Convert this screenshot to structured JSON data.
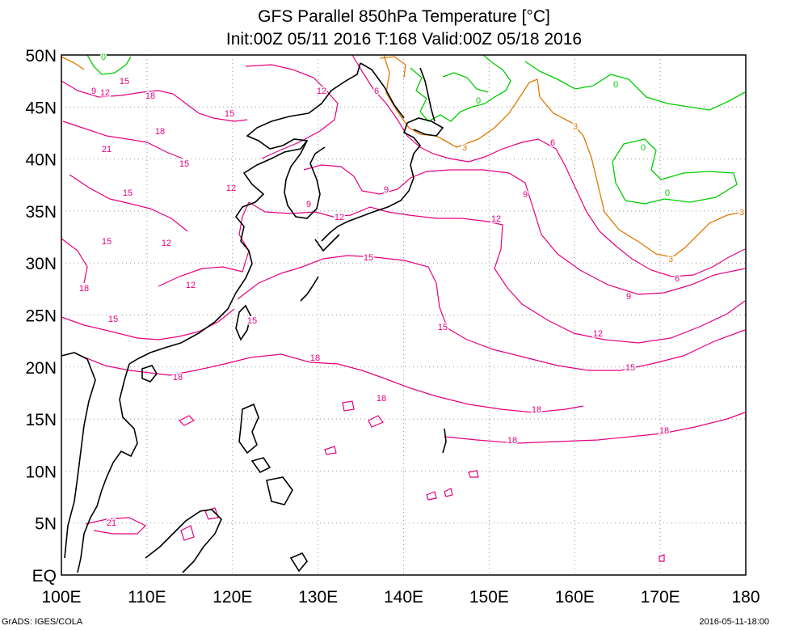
{
  "title": {
    "line1": "GFS Parallel 850hPa Temperature [°C]",
    "line2": "Init:00Z 05/11 2016 T:168 Valid:00Z 05/18 2016"
  },
  "axes": {
    "lon_labels": [
      "100E",
      "110E",
      "120E",
      "130E",
      "140E",
      "150E",
      "160E",
      "170E",
      "180"
    ],
    "lat_labels": [
      "EQ",
      "5N",
      "10N",
      "15N",
      "20N",
      "25N",
      "30N",
      "35N",
      "40N",
      "45N",
      "50N"
    ],
    "lon_range": [
      100,
      180
    ],
    "lat_range": [
      0,
      50
    ],
    "grid": true
  },
  "contour_colors": {
    "warm": "#e6007e",
    "zero_degree": "#00cc00",
    "three_degree": "#e07800",
    "coast": "#000000"
  },
  "contours": [
    {
      "level": "0",
      "color_key": "zero_degree"
    },
    {
      "level": "3",
      "color_key": "three_degree"
    },
    {
      "level": "6",
      "color_key": "warm"
    },
    {
      "level": "9",
      "color_key": "warm"
    },
    {
      "level": "12",
      "color_key": "warm"
    },
    {
      "level": "15",
      "color_key": "warm"
    },
    {
      "level": "18",
      "color_key": "warm"
    },
    {
      "level": "21",
      "color_key": "warm"
    }
  ],
  "footer": {
    "left": "GrADS: IGES/COLA",
    "right": "2016-05-11-18:00"
  }
}
